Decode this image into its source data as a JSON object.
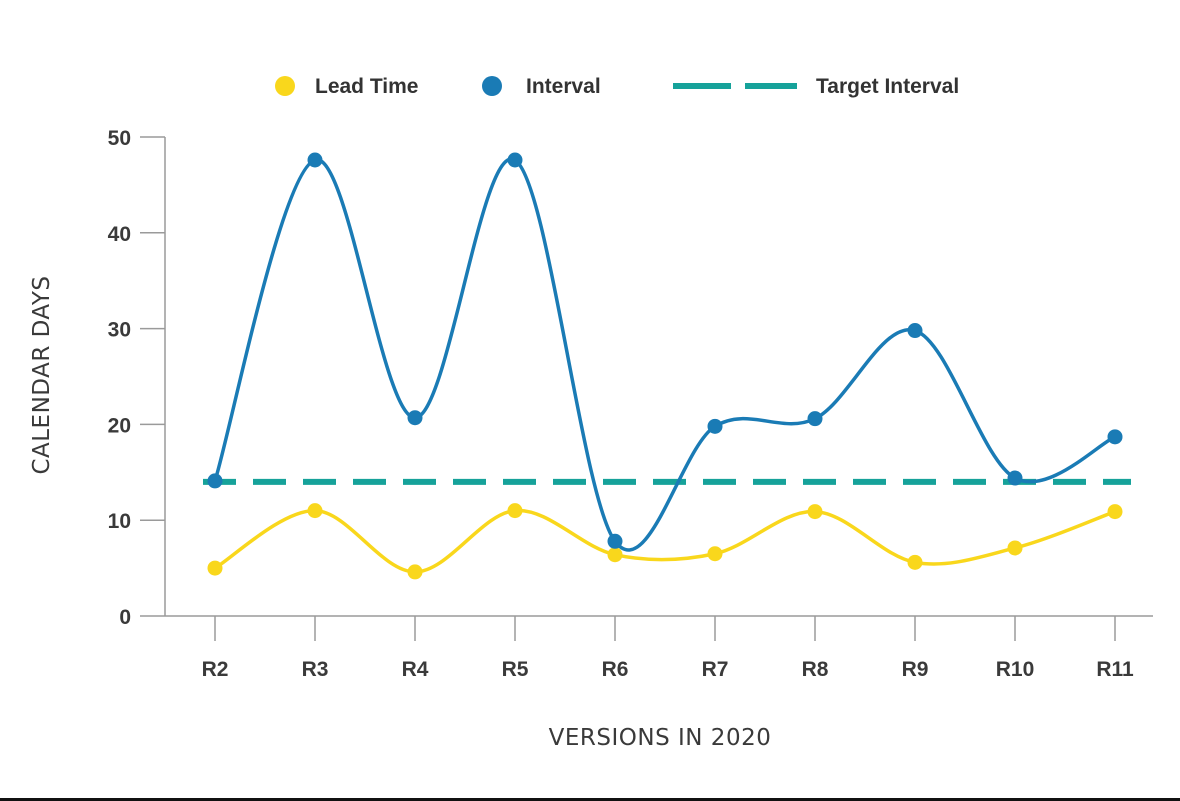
{
  "chart_data": {
    "type": "line",
    "xlabel": "VERSIONS IN 2020",
    "ylabel": "CALENDAR DAYS",
    "ylim": [
      0,
      50
    ],
    "yticks": [
      0,
      10,
      20,
      30,
      40,
      50
    ],
    "categories": [
      "R2",
      "R3",
      "R4",
      "R5",
      "R6",
      "R7",
      "R8",
      "R9",
      "R10",
      "R11"
    ],
    "legend_position": "top",
    "smooth": true,
    "series": [
      {
        "name": "Lead Time",
        "color": "#f9d71c",
        "style": "solid-markers",
        "values": [
          5,
          11,
          4.6,
          11,
          6.4,
          6.5,
          10.9,
          5.6,
          7.1,
          10.9
        ]
      },
      {
        "name": "Interval",
        "color": "#1a7bb5",
        "style": "solid-markers",
        "values": [
          14.1,
          47.6,
          20.7,
          47.6,
          7.8,
          19.8,
          20.6,
          29.8,
          14.4,
          18.7
        ]
      },
      {
        "name": "Target Interval",
        "color": "#16a29a",
        "style": "dashed",
        "values": [
          14,
          14,
          14,
          14,
          14,
          14,
          14,
          14,
          14,
          14
        ]
      }
    ]
  }
}
